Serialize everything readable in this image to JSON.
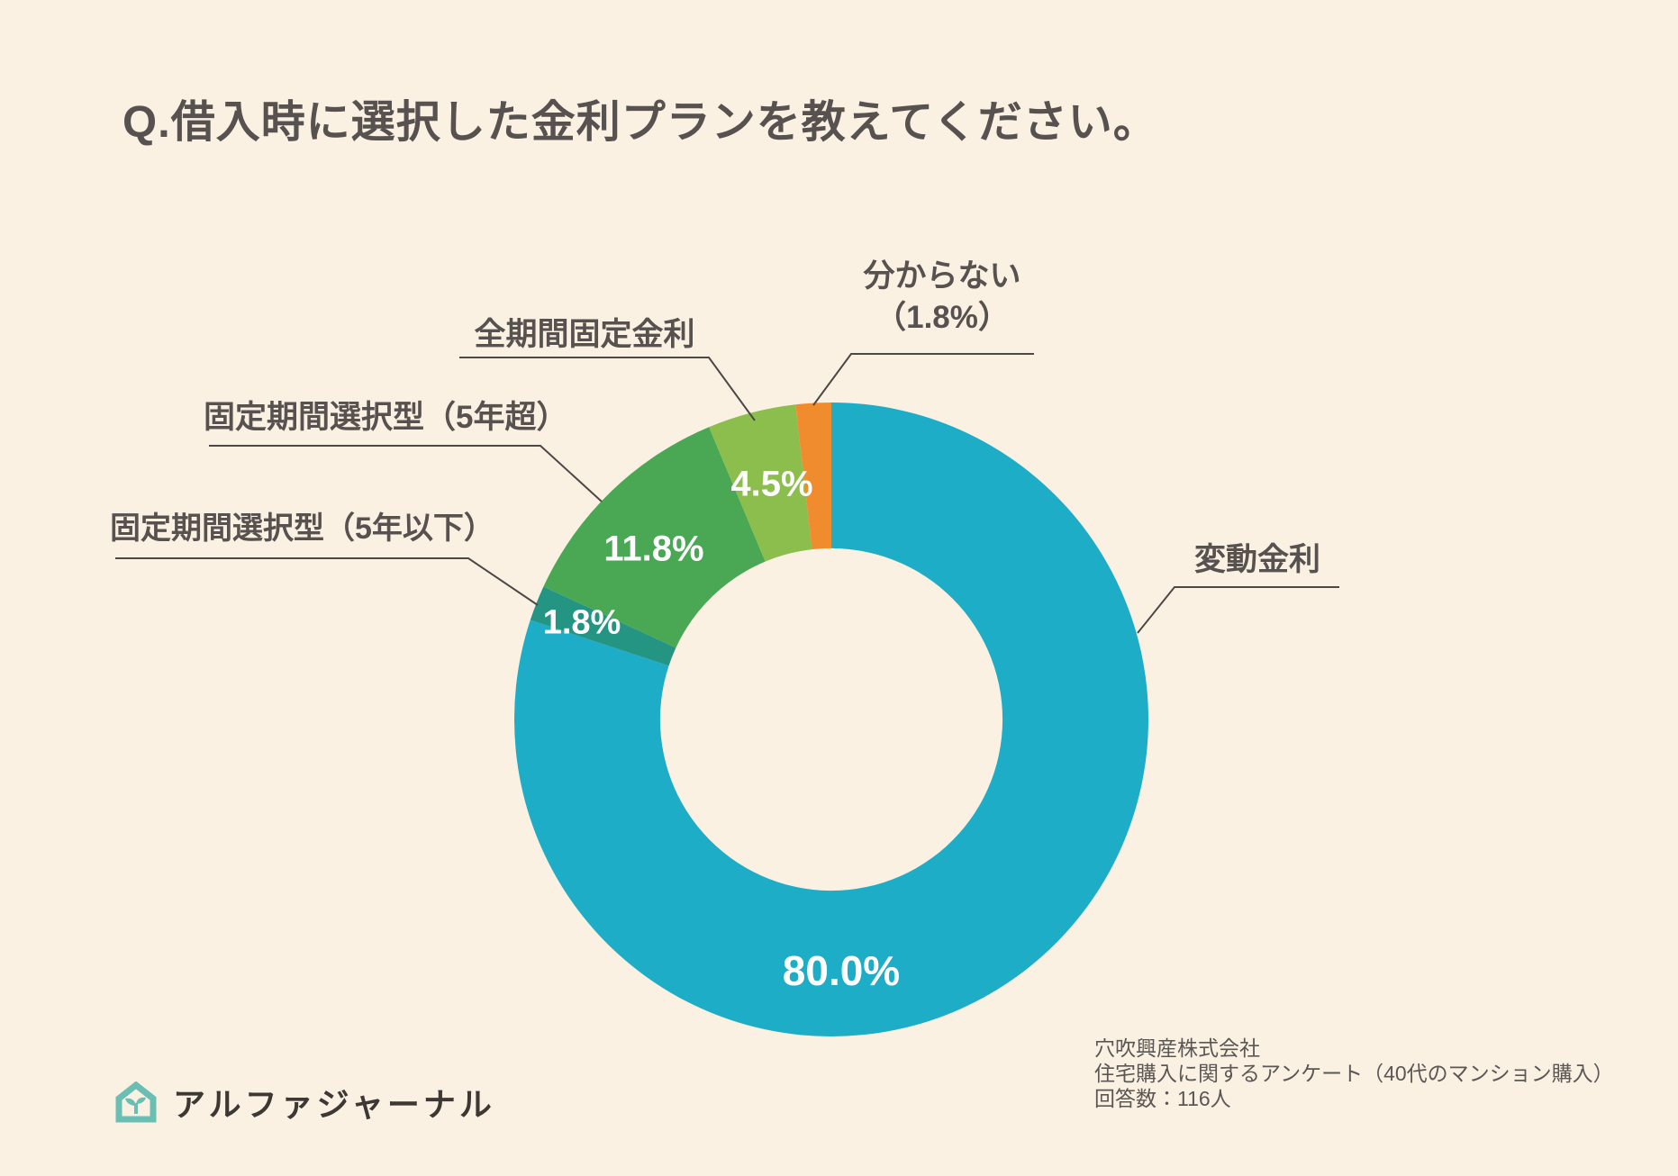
{
  "title": "Q.借入時に選択した金利プランを教えてください。",
  "chart_data": {
    "type": "pie",
    "subtype": "donut",
    "title": "借入時に選択した金利プラン",
    "unit": "%",
    "direction": "clockwise",
    "start_angle_deg": 0,
    "inner_radius_ratio": 0.54,
    "segments": [
      {
        "label": "変動金利",
        "value": 80.0,
        "pct_label": "80.0%",
        "color": "#1EADC6"
      },
      {
        "label": "固定期間選択型（5年以下）",
        "value": 1.8,
        "pct_label": "1.8%",
        "color": "#249483"
      },
      {
        "label": "固定期間選択型（5年超）",
        "value": 11.8,
        "pct_label": "11.8%",
        "color": "#4AA754"
      },
      {
        "label": "全期間固定金利",
        "value": 4.5,
        "pct_label": "4.5%",
        "color": "#8CBE4D"
      },
      {
        "label": "分からない",
        "value": 1.8,
        "pct_label": "（1.8%）",
        "color": "#F08C2D"
      }
    ]
  },
  "source": {
    "line1": "穴吹興産株式会社",
    "line2": "住宅購入に関するアンケート（40代のマンション購入）",
    "line3": "回答数：116人"
  },
  "logo": {
    "text": "アルファジャーナル",
    "icon": "house-sprout-icon",
    "icon_color": "#6ABEB4"
  },
  "colors": {
    "background": "#FAF1E3",
    "text": "#575250",
    "leader_line": "#4c4846"
  }
}
